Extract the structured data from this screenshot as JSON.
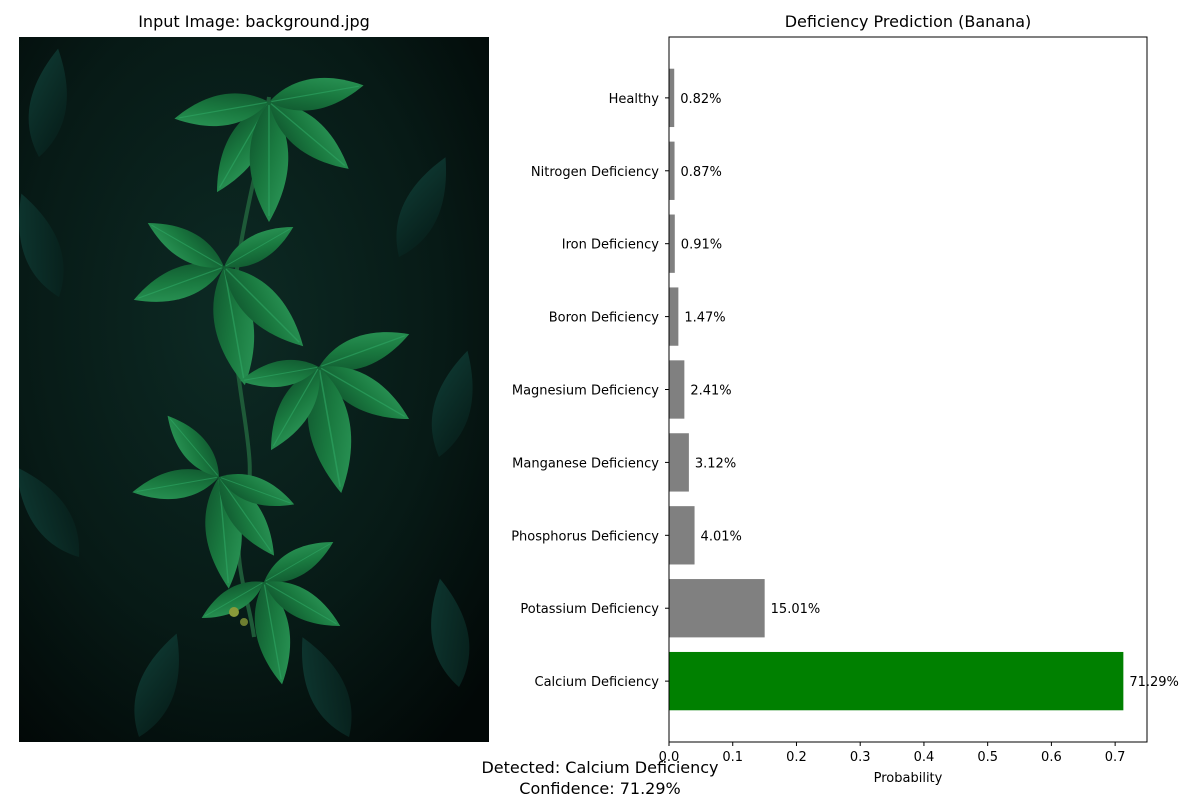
{
  "left_panel": {
    "title": "Input Image: background.jpg",
    "image_subject": "dark green leaves of a climbing vine against a dark background"
  },
  "chart_data": {
    "type": "bar",
    "orientation": "horizontal",
    "title": "Deficiency Prediction (Banana)",
    "xlabel": "Probability",
    "ylabel": "",
    "xlim": [
      0,
      0.75
    ],
    "x_ticks": [
      "0.0",
      "0.1",
      "0.2",
      "0.3",
      "0.4",
      "0.5",
      "0.6",
      "0.7"
    ],
    "grid": false,
    "categories": [
      "Calcium Deficiency",
      "Potassium Deficiency",
      "Phosphorus Deficiency",
      "Manganese Deficiency",
      "Magnesium Deficiency",
      "Boron Deficiency",
      "Iron Deficiency",
      "Nitrogen Deficiency",
      "Healthy"
    ],
    "values": [
      0.7129,
      0.1501,
      0.0401,
      0.0312,
      0.0241,
      0.0147,
      0.0091,
      0.0087,
      0.0082
    ],
    "value_labels": [
      "71.29%",
      "15.01%",
      "4.01%",
      "3.12%",
      "2.41%",
      "1.47%",
      "0.91%",
      "0.87%",
      "0.82%"
    ],
    "bar_colors": [
      "#008000",
      "#808080",
      "#808080",
      "#808080",
      "#808080",
      "#808080",
      "#808080",
      "#808080",
      "#808080"
    ]
  },
  "footer": {
    "detected": "Detected: Calcium Deficiency",
    "confidence": "Confidence: 71.29%"
  }
}
